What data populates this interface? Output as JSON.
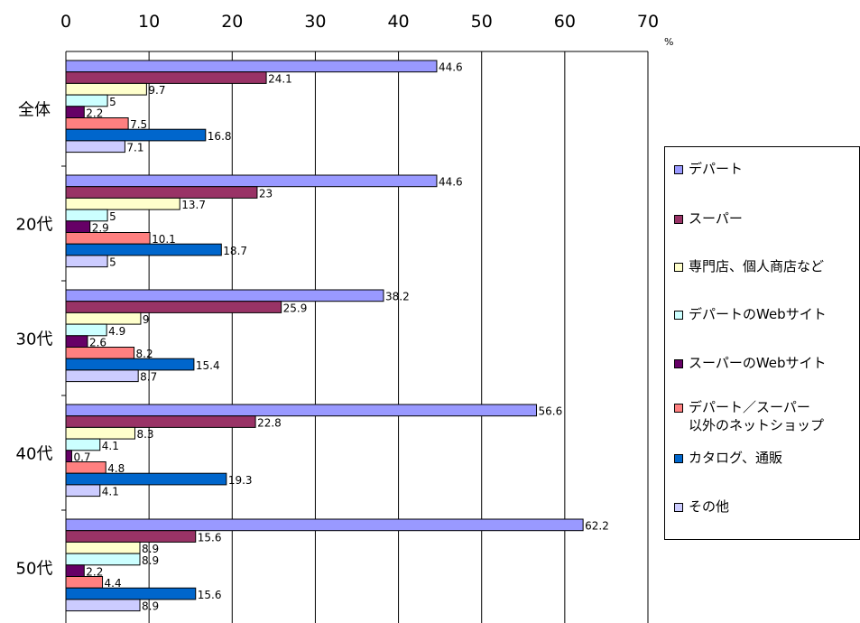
{
  "chart_data": {
    "type": "bar",
    "orientation": "horizontal",
    "unit": "%",
    "xlim": [
      0,
      70
    ],
    "x_ticks": [
      "0",
      "10",
      "20",
      "30",
      "40",
      "50",
      "60",
      "70"
    ],
    "grid": true,
    "legend_position": "right",
    "categories": [
      "全体",
      "20代",
      "30代",
      "40代",
      "50代"
    ],
    "series": [
      {
        "name": "デパート",
        "color": "#9999FF",
        "values": [
          44.6,
          44.6,
          38.2,
          56.6,
          62.2
        ]
      },
      {
        "name": "スーパー",
        "color": "#993366",
        "values": [
          24.1,
          23,
          25.9,
          22.8,
          15.6
        ]
      },
      {
        "name": "専門店、個人商店など",
        "color": "#FFFFCC",
        "values": [
          9.7,
          13.7,
          9,
          8.3,
          8.9
        ]
      },
      {
        "name": "デパートのWebサイト",
        "color": "#CCFFFF",
        "values": [
          5,
          5,
          4.9,
          4.1,
          8.9
        ]
      },
      {
        "name": "スーパーのWebサイト",
        "color": "#660066",
        "values": [
          2.2,
          2.9,
          2.6,
          0.7,
          2.2
        ]
      },
      {
        "name": "デパート／スーパー\n以外のネットショップ",
        "color": "#FF8080",
        "values": [
          7.5,
          10.1,
          8.2,
          4.8,
          4.4
        ]
      },
      {
        "name": "カタログ、通販",
        "color": "#0066CC",
        "values": [
          16.8,
          18.7,
          15.4,
          19.3,
          15.6
        ]
      },
      {
        "name": "その他",
        "color": "#CCCCFF",
        "values": [
          7.1,
          5,
          8.7,
          4.1,
          8.9
        ]
      }
    ]
  }
}
